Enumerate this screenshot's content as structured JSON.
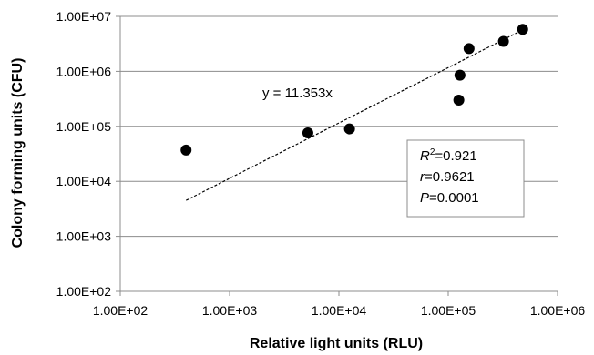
{
  "chart_data": {
    "type": "scatter",
    "xscale": "log",
    "yscale": "log",
    "xlim": [
      100,
      1000000
    ],
    "ylim": [
      100,
      10000000
    ],
    "xticks": [
      100,
      1000,
      10000,
      100000,
      1000000
    ],
    "yticks": [
      100,
      1000,
      10000,
      100000,
      1000000,
      10000000
    ],
    "xtick_labels": [
      "1.00E+02",
      "1.00E+03",
      "1.00E+04",
      "1.00E+05",
      "1.00E+06"
    ],
    "ytick_labels": [
      "1.00E+02",
      "1.00E+03",
      "1.00E+04",
      "1.00E+05",
      "1.00E+06",
      "1.00E+07"
    ],
    "xlabel": "Relative light units (RLU)",
    "ylabel": "Colony forming units (CFU)",
    "grid": "horizontal",
    "points": [
      {
        "x": 400,
        "y": 37000
      },
      {
        "x": 5200,
        "y": 76000
      },
      {
        "x": 12500,
        "y": 90000
      },
      {
        "x": 125000,
        "y": 300000
      },
      {
        "x": 128000,
        "y": 850000
      },
      {
        "x": 155000,
        "y": 2600000
      },
      {
        "x": 320000,
        "y": 3500000
      },
      {
        "x": 480000,
        "y": 5800000
      }
    ],
    "trendline": {
      "x": [
        400,
        490000
      ],
      "y": [
        4500,
        5800000
      ],
      "style": "dashed"
    },
    "equation": "y = 11.353x",
    "stats": {
      "r2_label": "R",
      "r2_sup": "2",
      "r2_value": "=0.921",
      "r_label": "r",
      "r_value": "=0.9621",
      "p_label": "P",
      "p_value": "=0.0001"
    },
    "colors": {
      "points": "#000000",
      "grid": "#8c8c8c",
      "axis": "#8c8c8c"
    }
  }
}
